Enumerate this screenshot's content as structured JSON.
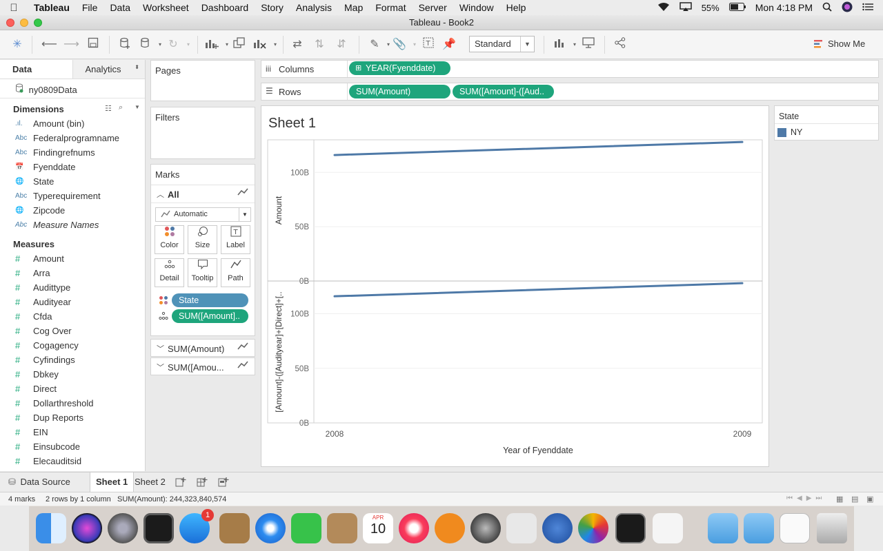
{
  "menubar": {
    "app": "Tableau",
    "items": [
      "File",
      "Data",
      "Worksheet",
      "Dashboard",
      "Story",
      "Analysis",
      "Map",
      "Format",
      "Server",
      "Window",
      "Help"
    ],
    "battery": "55%",
    "clock": "Mon 4:18 PM"
  },
  "window": {
    "title": "Tableau - Book2"
  },
  "toolbar": {
    "fit_select": "Standard",
    "show_me": "Show Me"
  },
  "left_panel": {
    "tabs": [
      "Data",
      "Analytics"
    ],
    "datasource": "ny0809Data",
    "dimensions_header": "Dimensions",
    "dimensions": [
      {
        "icon": ".ıl.",
        "name": "Amount (bin)"
      },
      {
        "icon": "Abc",
        "name": "Federalprogramname"
      },
      {
        "icon": "Abc",
        "name": "Findingrefnums"
      },
      {
        "icon": "📅",
        "name": "Fyenddate"
      },
      {
        "icon": "🌐",
        "name": "State"
      },
      {
        "icon": "Abc",
        "name": "Typerequirement"
      },
      {
        "icon": "🌐",
        "name": "Zipcode"
      },
      {
        "icon": "Abc",
        "name": "Measure Names"
      }
    ],
    "measures_header": "Measures",
    "measures": [
      "Amount",
      "Arra",
      "Audittype",
      "Audityear",
      "Cfda",
      "Cog Over",
      "Cogagency",
      "Cyfindings",
      "Dbkey",
      "Direct",
      "Dollarthreshold",
      "Dup Reports",
      "EIN",
      "Einsubcode",
      "Elecauditsid"
    ]
  },
  "shelves": {
    "pages": "Pages",
    "filters": "Filters",
    "columns_label": "Columns",
    "rows_label": "Rows",
    "columns_pills": [
      "YEAR(Fyenddate)"
    ],
    "rows_pills": [
      "SUM(Amount)",
      "SUM([Amount]-([Aud.."
    ]
  },
  "marks": {
    "header": "Marks",
    "all": "All",
    "type": "Automatic",
    "buttons": [
      "Color",
      "Size",
      "Label",
      "Detail",
      "Tooltip",
      "Path"
    ],
    "pills": [
      "State",
      "SUM([Amount].."
    ],
    "sub_cards": [
      "SUM(Amount)",
      "SUM([Amou..."
    ]
  },
  "sheet": {
    "title": "Sheet 1",
    "xlabel": "Year of Fyenddate",
    "x_ticks": [
      "2008",
      "2009"
    ],
    "pane1_ylabel": "Amount",
    "pane2_ylabel": "[Amount]-([Audityear]+[Direct]+[..",
    "y_ticks": [
      "0B",
      "50B",
      "100B"
    ]
  },
  "chart_data": {
    "type": "line",
    "x": [
      "2008",
      "2009"
    ],
    "xlabel": "Year of Fyenddate",
    "ylim": [
      0,
      130000000000
    ],
    "series": [
      {
        "name": "NY",
        "pane": "Amount",
        "values": [
          116000000000,
          128000000000
        ]
      },
      {
        "name": "NY",
        "pane": "[Amount]-([Audityear]+[Direct]+[..",
        "values": [
          116000000000,
          128000000000
        ]
      }
    ],
    "color": "#4e79a7",
    "legend": "right"
  },
  "legend": {
    "title": "State",
    "items": [
      {
        "label": "NY",
        "color": "#4e79a7"
      }
    ]
  },
  "sheet_tabs": {
    "datasource": "Data Source",
    "tabs": [
      "Sheet 1",
      "Sheet 2"
    ]
  },
  "status": {
    "marks": "4 marks",
    "dims": "2 rows by 1 column",
    "sum": "SUM(Amount): 244,323,840,574"
  },
  "dock": {
    "badge": "1",
    "calendar_month": "APR",
    "calendar_day": "10"
  }
}
